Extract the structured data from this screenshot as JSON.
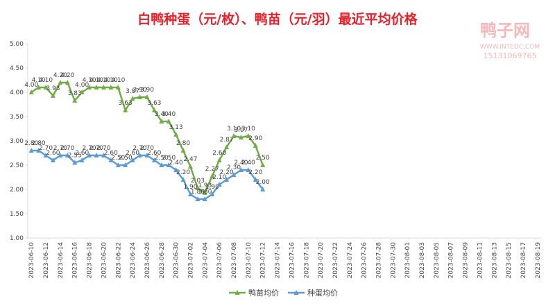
{
  "chart_data": {
    "type": "line",
    "title": "白鸭种蛋（元/枚）、鸭苗（元/羽）最近平均价格",
    "watermark": [
      "鸭子网",
      "WWW.INTEDC.COM",
      "15131069765"
    ],
    "categories": [
      "2023-06-10",
      null,
      "2023-06-12",
      null,
      "2023-06-14",
      null,
      "2023-06-16",
      null,
      "2023-06-18",
      null,
      "2023-06-20",
      null,
      "2023-06-22",
      null,
      "2023-06-24",
      null,
      "2023-06-26",
      null,
      "2023-06-28",
      null,
      "2023-06-30",
      null,
      "2023-07-02",
      null,
      "2023-07-04",
      null,
      "2023-07-06",
      null,
      "2023-07-08",
      null,
      "2023-07-10",
      null,
      "2023-07-12",
      null,
      "2023-07-14",
      null,
      "2023-07-16",
      null,
      "2023-07-18",
      null,
      "2023-07-20",
      null,
      "2023-07-22",
      null,
      "2023-07-24",
      null,
      "2023-07-26",
      null,
      "2023-07-28",
      null,
      "2023-07-30",
      null,
      "2023-08-01",
      null,
      "2023-08-03",
      null,
      "2023-08-05",
      null,
      "2023-08-07",
      null,
      "2023-08-09",
      null,
      "2023-08-11",
      null,
      "2023-08-13",
      null,
      "2023-08-15",
      null,
      "2023-08-17",
      null,
      "2023-08-19"
    ],
    "series": [
      {
        "name": "鸭苗均价",
        "color": "#70ad47",
        "values": [
          4.0,
          4.1,
          4.1,
          3.93,
          4.2,
          4.2,
          3.83,
          4.0,
          4.1,
          4.1,
          4.1,
          4.1,
          4.1,
          3.63,
          3.87,
          3.9,
          3.9,
          3.63,
          3.4,
          3.4,
          3.13,
          2.8,
          2.47,
          2.03,
          1.93,
          2.27,
          2.6,
          2.87,
          3.1,
          3.07,
          3.1,
          2.9,
          2.5,
          null,
          null,
          null,
          null,
          null,
          null,
          null,
          null,
          null,
          null,
          null,
          null,
          null,
          null,
          null,
          null,
          null,
          null,
          null,
          null,
          null,
          null,
          null,
          null,
          null,
          null,
          null,
          null,
          null,
          null,
          null,
          null,
          null,
          null,
          null,
          null,
          null,
          null
        ],
        "value_labels": [
          "4.00",
          "4.10",
          "4.10",
          "3.93",
          "4.20",
          "4.20",
          "3.83",
          "4.00",
          "4.10",
          "4.10",
          "4.10",
          "4.10",
          "4.10",
          "3.63",
          "3.87",
          "3.90",
          "3.90",
          "3.63",
          "3.40",
          "3.40",
          "3.13",
          "2.80",
          "2.47",
          "2.03",
          "1.93",
          "2.27",
          "2.60",
          "2.87",
          "3.10",
          "3.07",
          "3.10",
          "2.90",
          "2.50",
          null,
          null,
          null,
          null,
          null,
          null,
          null,
          null,
          null,
          null,
          null,
          null,
          null,
          null,
          null,
          null,
          null,
          null,
          null,
          null,
          null,
          null,
          null,
          null,
          null,
          null,
          null,
          null,
          null,
          null,
          null,
          null,
          null,
          null,
          null,
          null,
          null,
          null
        ]
      },
      {
        "name": "种蛋均价",
        "color": "#5b9bd5",
        "values": [
          2.8,
          2.8,
          2.7,
          2.6,
          2.7,
          2.7,
          2.55,
          2.6,
          2.7,
          2.7,
          2.7,
          2.6,
          2.5,
          2.5,
          2.6,
          2.7,
          2.7,
          2.6,
          2.5,
          2.5,
          2.4,
          2.2,
          1.9,
          1.8,
          1.8,
          1.9,
          2.1,
          2.2,
          2.3,
          2.4,
          2.4,
          2.2,
          2.0,
          null,
          null,
          null,
          null,
          null,
          null,
          null,
          null,
          null,
          null,
          null,
          null,
          null,
          null,
          null,
          null,
          null,
          null,
          null,
          null,
          null,
          null,
          null,
          null,
          null,
          null,
          null,
          null,
          null,
          null,
          null,
          null,
          null,
          null,
          null,
          null,
          null,
          null
        ],
        "value_labels": [
          "2.80",
          "2.80",
          "2.70",
          "2.60",
          "2.70",
          "2.70",
          "2.55",
          "2.60",
          "2.70",
          "2.70",
          "2.70",
          "2.60",
          "2.50",
          "2.50",
          "2.60",
          "2.70",
          "2.70",
          "2.60",
          "2.50",
          "2.50",
          "2.40",
          "2.20",
          "1.90",
          "1.80",
          "1.80",
          "1.90",
          "2.10",
          "2.20",
          "2.30",
          "2.40",
          "2.40",
          "2.20",
          "2.00",
          null,
          null,
          null,
          null,
          null,
          null,
          null,
          null,
          null,
          null,
          null,
          null,
          null,
          null,
          null,
          null,
          null,
          null,
          null,
          null,
          null,
          null,
          null,
          null,
          null,
          null,
          null,
          null,
          null,
          null,
          null,
          null,
          null,
          null,
          null,
          null,
          null,
          null
        ]
      }
    ],
    "ylim": [
      1,
      5
    ],
    "yticks": [
      {
        "value": 1,
        "label": "1.00"
      },
      {
        "value": 1.5,
        "label": "1.50"
      },
      {
        "value": 2,
        "label": "2.00"
      },
      {
        "value": 2.5,
        "label": "2.50"
      },
      {
        "value": 3,
        "label": "3.00"
      },
      {
        "value": 3.5,
        "label": "3.50"
      },
      {
        "value": 4,
        "label": "4.00"
      },
      {
        "value": 4.5,
        "label": "4.50"
      },
      {
        "value": 5,
        "label": "5.00"
      }
    ],
    "legend": "bottom",
    "grid": false
  }
}
